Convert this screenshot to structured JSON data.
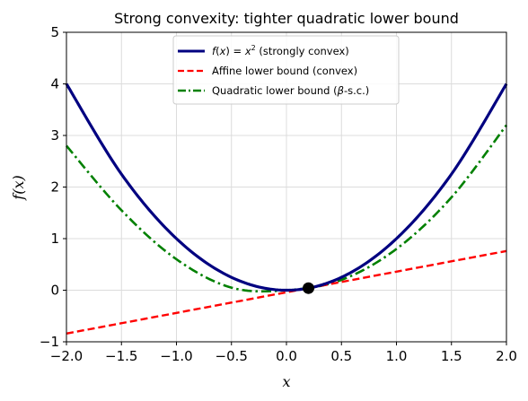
{
  "chart_data": {
    "type": "line",
    "title": "Strong convexity: tighter quadratic lower bound",
    "xlabel": "x",
    "ylabel": "f(x)",
    "xlim": [
      -2.0,
      2.0
    ],
    "ylim": [
      -1,
      5
    ],
    "xticks": [
      -2.0,
      -1.5,
      -1.0,
      -0.5,
      0.0,
      0.5,
      1.0,
      1.5,
      2.0
    ],
    "xtick_labels": [
      "−2.0",
      "−1.5",
      "−1.0",
      "−0.5",
      "0.0",
      "0.5",
      "1.0",
      "1.5",
      "2.0"
    ],
    "yticks": [
      -1,
      0,
      1,
      2,
      3,
      4,
      5
    ],
    "ytick_labels": [
      "−1",
      "0",
      "1",
      "2",
      "3",
      "4",
      "5"
    ],
    "grid": true,
    "legend_position": "top-center",
    "series": [
      {
        "name": "f(x) = x² (strongly convex)",
        "color": "#000080",
        "style": "solid",
        "x": [
          -2.0,
          -1.5,
          -1.0,
          -0.5,
          0.0,
          0.5,
          1.0,
          1.5,
          2.0
        ],
        "y": [
          4.0,
          2.25,
          1.0,
          0.25,
          0.0,
          0.25,
          1.0,
          2.25,
          4.0
        ]
      },
      {
        "name": "Affine lower bound (convex)",
        "color": "#ff0000",
        "style": "dashed",
        "x": [
          -2.0,
          2.0
        ],
        "y": [
          -0.84,
          0.76
        ]
      },
      {
        "name": "Quadratic lower bound (β-s.c.)",
        "color": "#008000",
        "style": "dashdot",
        "x": [
          -2.0,
          -1.5,
          -1.0,
          -0.5,
          0.0,
          0.5,
          1.0,
          1.5,
          2.0
        ],
        "y": [
          2.8,
          1.55,
          0.6,
          0.05,
          0.0,
          0.2,
          0.8,
          1.8,
          3.2
        ]
      }
    ],
    "points": [
      {
        "x": 0.2,
        "y": 0.04,
        "color": "#000000"
      }
    ]
  },
  "legend": {
    "item1_prefix": "f",
    "item1_mid": "(",
    "item1_var": "x",
    "item1_mid2": ") = ",
    "item1_var2": "x",
    "item1_sup": "2",
    "item1_suffix": " (strongly convex)",
    "item2": "Affine lower bound (convex)",
    "item3_prefix": "Quadratic lower bound (",
    "item3_beta": "β",
    "item3_suffix": "-s.c.)"
  }
}
